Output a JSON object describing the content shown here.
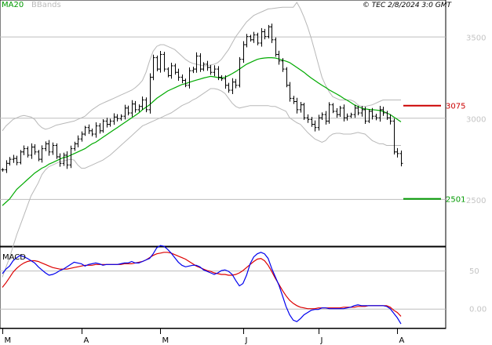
{
  "header": {
    "legend_ma": "MA20",
    "legend_bb": "BBands",
    "copyright": "© TEC 2/8/2024 3:0 GMT"
  },
  "macd_panel": {
    "label": "MACD"
  },
  "colors": {
    "price": "#000000",
    "ma20": "#00aa00",
    "bbands": "#b8b8b8",
    "resistance": "#cc0000",
    "support": "#009900",
    "macd_line": "#0000ee",
    "signal_line": "#dd0000",
    "axis_text": "#c4c4c4",
    "legend_ma": "#009900",
    "legend_bb": "#bbbbbb"
  },
  "chart_data": [
    {
      "type": "ohlc",
      "title": "",
      "y_ticks": [
        2500,
        3000,
        3500
      ],
      "y_tick_labels": [
        "2500",
        "3000",
        "3500"
      ],
      "ylim": [
        2210,
        3725
      ],
      "x_month_labels": [
        "M",
        "A",
        "M",
        "J",
        "J",
        "A"
      ],
      "x_month_label_index": [
        0,
        22,
        44,
        67,
        88,
        110
      ],
      "levels": [
        {
          "name": "resistance",
          "value": 3075,
          "label": "3075"
        },
        {
          "name": "support",
          "value": 2501,
          "label": "2501"
        }
      ],
      "series": [
        {
          "name": "Price",
          "kind": "close",
          "values": [
            2680,
            2720,
            2745,
            2750,
            2725,
            2790,
            2810,
            2770,
            2820,
            2790,
            2745,
            2810,
            2840,
            2790,
            2830,
            2760,
            2720,
            2770,
            2710,
            2810,
            2840,
            2870,
            2900,
            2940,
            2920,
            2900,
            2950,
            2920,
            2980,
            2960,
            2980,
            3005,
            2995,
            3010,
            3060,
            3030,
            3085,
            3050,
            3070,
            3110,
            3050,
            3250,
            3370,
            3300,
            3390,
            3300,
            3260,
            3320,
            3280,
            3250,
            3230,
            3200,
            3290,
            3300,
            3380,
            3300,
            3330,
            3310,
            3280,
            3300,
            3250,
            3240,
            3200,
            3170,
            3220,
            3200,
            3360,
            3450,
            3500,
            3480,
            3510,
            3460,
            3530,
            3500,
            3560,
            3480,
            3390,
            3350,
            3300,
            3200,
            3120,
            3100,
            3050,
            3080,
            3000,
            2990,
            2960,
            2940,
            3000,
            3020,
            2980,
            3080,
            3040,
            3020,
            3060,
            3000,
            3010,
            3020,
            3060,
            3030,
            3050,
            2980,
            3040,
            3010,
            3000,
            3050,
            3030,
            3000,
            2980,
            2790,
            2780,
            2720
          ]
        },
        {
          "name": "MA20",
          "values": [
            2460,
            2480,
            2500,
            2530,
            2560,
            2580,
            2600,
            2620,
            2640,
            2660,
            2675,
            2690,
            2700,
            2715,
            2725,
            2735,
            2745,
            2755,
            2760,
            2770,
            2780,
            2790,
            2800,
            2810,
            2825,
            2840,
            2850,
            2865,
            2880,
            2895,
            2910,
            2925,
            2940,
            2955,
            2970,
            2985,
            3000,
            3015,
            3030,
            3050,
            3065,
            3080,
            3100,
            3120,
            3135,
            3150,
            3165,
            3175,
            3185,
            3195,
            3205,
            3210,
            3218,
            3225,
            3232,
            3238,
            3245,
            3250,
            3255,
            3252,
            3248,
            3245,
            3250,
            3260,
            3272,
            3285,
            3300,
            3315,
            3330,
            3340,
            3350,
            3360,
            3365,
            3368,
            3370,
            3370,
            3368,
            3362,
            3355,
            3348,
            3340,
            3325,
            3310,
            3295,
            3280,
            3262,
            3245,
            3230,
            3215,
            3200,
            3187,
            3172,
            3160,
            3148,
            3135,
            3120,
            3108,
            3095,
            3080,
            3070,
            3060,
            3055,
            3052,
            3050,
            3048,
            3045,
            3040,
            3030,
            3020,
            3005,
            2990,
            2975
          ]
        },
        {
          "name": "BBands upper",
          "values": [
            2920,
            2950,
            2970,
            2990,
            3000,
            3010,
            3015,
            3010,
            3005,
            2990,
            2960,
            2940,
            2930,
            2935,
            2945,
            2955,
            2960,
            2965,
            2970,
            2975,
            2980,
            2990,
            3000,
            3010,
            3030,
            3050,
            3065,
            3080,
            3090,
            3100,
            3110,
            3120,
            3130,
            3140,
            3150,
            3160,
            3170,
            3185,
            3205,
            3230,
            3280,
            3350,
            3410,
            3440,
            3450,
            3450,
            3440,
            3430,
            3420,
            3400,
            3380,
            3360,
            3345,
            3335,
            3330,
            3325,
            3320,
            3320,
            3325,
            3330,
            3340,
            3360,
            3390,
            3420,
            3460,
            3500,
            3530,
            3560,
            3590,
            3610,
            3630,
            3640,
            3650,
            3660,
            3670,
            3672,
            3675,
            3678,
            3680,
            3680,
            3680,
            3680,
            3710,
            3670,
            3620,
            3560,
            3490,
            3410,
            3330,
            3250,
            3200,
            3160,
            3130,
            3120,
            3110,
            3110,
            3110,
            3110,
            3100,
            3080,
            3070,
            3070,
            3075,
            3080,
            3090,
            3100,
            3110,
            3110,
            3110,
            3110,
            3110,
            3110
          ]
        },
        {
          "name": "BBands lower",
          "values": [
            2020,
            2080,
            2140,
            2210,
            2280,
            2340,
            2400,
            2460,
            2520,
            2560,
            2600,
            2650,
            2680,
            2700,
            2710,
            2720,
            2730,
            2735,
            2740,
            2745,
            2740,
            2710,
            2690,
            2690,
            2700,
            2710,
            2720,
            2730,
            2740,
            2755,
            2770,
            2790,
            2810,
            2830,
            2850,
            2870,
            2890,
            2910,
            2930,
            2950,
            2960,
            2970,
            2980,
            2990,
            3000,
            3010,
            3020,
            3030,
            3045,
            3060,
            3075,
            3085,
            3095,
            3110,
            3120,
            3135,
            3150,
            3165,
            3180,
            3180,
            3175,
            3165,
            3150,
            3120,
            3090,
            3070,
            3060,
            3065,
            3070,
            3075,
            3075,
            3075,
            3075,
            3075,
            3075,
            3070,
            3070,
            3060,
            3050,
            3040,
            3000,
            2985,
            2970,
            2960,
            2935,
            2910,
            2890,
            2870,
            2860,
            2850,
            2860,
            2885,
            2900,
            2905,
            2905,
            2900,
            2900,
            2900,
            2905,
            2910,
            2905,
            2900,
            2880,
            2860,
            2850,
            2840,
            2840,
            2830,
            2830,
            2830,
            2830,
            2830
          ]
        }
      ]
    },
    {
      "type": "line",
      "title": "MACD",
      "y_ticks": [
        0,
        50
      ],
      "y_tick_labels": [
        "0.00",
        "50"
      ],
      "ylim": [
        -25,
        81
      ],
      "series": [
        {
          "name": "MACD",
          "values": [
            46,
            52,
            56,
            63,
            67,
            70,
            68,
            66,
            63,
            60,
            55,
            51,
            47,
            44,
            45,
            47,
            50,
            52,
            55,
            58,
            61,
            60,
            59,
            56,
            58,
            59,
            60,
            59,
            57,
            58,
            58,
            58,
            58,
            59,
            60,
            60,
            62,
            60,
            60,
            62,
            64,
            66,
            72,
            80,
            83,
            82,
            78,
            73,
            67,
            61,
            57,
            55,
            56,
            57,
            57,
            55,
            51,
            49,
            47,
            45,
            47,
            50,
            51,
            49,
            45,
            37,
            30,
            33,
            44,
            59,
            68,
            72,
            74,
            72,
            66,
            53,
            42,
            31,
            17,
            3,
            -8,
            -15,
            -17,
            -13,
            -8,
            -5,
            -2,
            -1,
            -1,
            1,
            1,
            0,
            0,
            0,
            0,
            0,
            1,
            2,
            4,
            5,
            4,
            4,
            4,
            4,
            4,
            4,
            4,
            3,
            0,
            -6,
            -12,
            -20
          ]
        },
        {
          "name": "Signal",
          "values": [
            28,
            34,
            41,
            48,
            53,
            57,
            60,
            62,
            63,
            63,
            62,
            60,
            58,
            56,
            54,
            53,
            52,
            52,
            52,
            53,
            54,
            55,
            56,
            57,
            57,
            57,
            58,
            58,
            58,
            58,
            58,
            58,
            58,
            58,
            59,
            59,
            59,
            60,
            61,
            62,
            64,
            67,
            70,
            72,
            73,
            74,
            74,
            73,
            71,
            69,
            67,
            65,
            62,
            59,
            56,
            54,
            52,
            50,
            49,
            47,
            46,
            45,
            45,
            44,
            44,
            45,
            47,
            50,
            54,
            58,
            62,
            65,
            66,
            63,
            57,
            49,
            40,
            32,
            24,
            17,
            11,
            7,
            4,
            2,
            1,
            0,
            0,
            0,
            1,
            1,
            1,
            1,
            1,
            1,
            1,
            2,
            2,
            2,
            2,
            3,
            3,
            3,
            4,
            4,
            4,
            4,
            4,
            4,
            2,
            -2,
            -5,
            -10
          ]
        }
      ]
    }
  ]
}
